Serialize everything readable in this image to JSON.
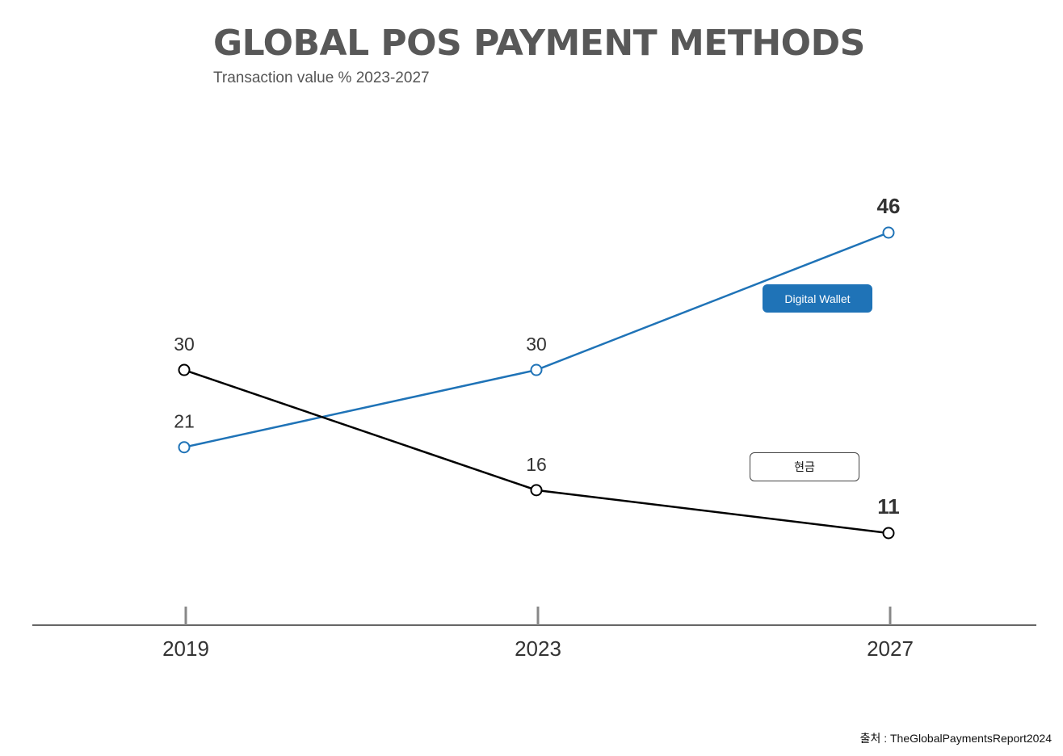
{
  "header": {
    "title": "GLOBAL POS PAYMENT METHODS",
    "subtitle": "Transaction value % 2023-2027"
  },
  "footer": {
    "source": "출처 : TheGlobalPaymentsReport2024"
  },
  "colors": {
    "digital_wallet": "#1f73b7",
    "cash": "#000000",
    "axis": "#333333",
    "tick": "#888888",
    "value_label": "#333333"
  },
  "chart_data": {
    "type": "line",
    "title": "GLOBAL POS PAYMENT METHODS",
    "subtitle": "Transaction value % 2023-2027",
    "categories": [
      "2019",
      "2023",
      "2027"
    ],
    "series": [
      {
        "name": "Digital Wallet",
        "key": "digital_wallet",
        "values": [
          21,
          30,
          46
        ],
        "value_labels": [
          "21",
          "30",
          "46"
        ],
        "marker": "hollow-circle",
        "legend_style": "filled"
      },
      {
        "name": "현금",
        "key": "cash",
        "values": [
          30,
          16,
          11
        ],
        "value_labels": [
          "30",
          "16",
          "11"
        ],
        "marker": "hollow-circle",
        "legend_style": "outlined"
      }
    ],
    "ylim": [
      0,
      55
    ],
    "grid": false,
    "y_axis_visible": false,
    "last_value_bold": true,
    "legend": "inline labels near line ends"
  }
}
